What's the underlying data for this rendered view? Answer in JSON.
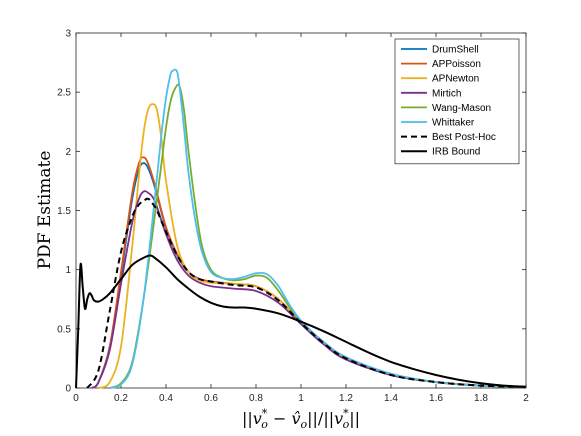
{
  "chart_data": {
    "type": "line",
    "xlabel": "||v_o* − v̂_o||/||v_o*||",
    "xlabel_parts": {
      "open": "||",
      "v": "v",
      "sup": "*",
      "sub": "o",
      "minus": " − ",
      "vhat": "v̂",
      "close": "||/||"
    },
    "ylabel": "PDF Estimate",
    "xlim": [
      0,
      2
    ],
    "ylim": [
      0,
      3
    ],
    "xticks": [
      "0",
      "0.2",
      "0.4",
      "0.6",
      "0.8",
      "1",
      "1.2",
      "1.4",
      "1.6",
      "1.8",
      "2"
    ],
    "yticks": [
      "0",
      "0.5",
      "1",
      "1.5",
      "2",
      "2.5",
      "3"
    ],
    "grid": false,
    "legend_position": "top-right",
    "series": [
      {
        "name": "DrumShell",
        "color": "#0072BD",
        "dash": "solid",
        "x": [
          0.07,
          0.1,
          0.15,
          0.2,
          0.25,
          0.28,
          0.3,
          0.32,
          0.35,
          0.4,
          0.45,
          0.5,
          0.55,
          0.6,
          0.7,
          0.8,
          0.9,
          1.0,
          1.1,
          1.2,
          1.4,
          1.6,
          1.8,
          2.0
        ],
        "y": [
          0.0,
          0.05,
          0.35,
          0.95,
          1.6,
          1.85,
          1.9,
          1.86,
          1.7,
          1.35,
          1.12,
          0.98,
          0.92,
          0.9,
          0.88,
          0.86,
          0.75,
          0.55,
          0.38,
          0.25,
          0.11,
          0.05,
          0.02,
          0.01
        ]
      },
      {
        "name": "APPoisson",
        "color": "#D95319",
        "dash": "solid",
        "x": [
          0.07,
          0.1,
          0.15,
          0.2,
          0.25,
          0.28,
          0.3,
          0.32,
          0.35,
          0.4,
          0.45,
          0.5,
          0.55,
          0.6,
          0.7,
          0.8,
          0.9,
          1.0,
          1.1,
          1.2,
          1.4,
          1.6,
          1.8,
          2.0
        ],
        "y": [
          0.0,
          0.05,
          0.35,
          0.98,
          1.65,
          1.9,
          1.95,
          1.9,
          1.72,
          1.36,
          1.13,
          0.98,
          0.92,
          0.9,
          0.88,
          0.86,
          0.75,
          0.55,
          0.38,
          0.25,
          0.11,
          0.05,
          0.02,
          0.01
        ]
      },
      {
        "name": "APNewton",
        "color": "#EDB120",
        "dash": "solid",
        "x": [
          0.1,
          0.15,
          0.2,
          0.25,
          0.28,
          0.3,
          0.32,
          0.34,
          0.36,
          0.38,
          0.4,
          0.45,
          0.5,
          0.55,
          0.6,
          0.7,
          0.8,
          0.9,
          1.0,
          1.1,
          1.2,
          1.4,
          1.6,
          1.8,
          2.0
        ],
        "y": [
          0.0,
          0.05,
          0.35,
          1.2,
          1.8,
          2.15,
          2.35,
          2.4,
          2.35,
          2.1,
          1.75,
          1.2,
          0.98,
          0.91,
          0.89,
          0.88,
          0.86,
          0.75,
          0.55,
          0.38,
          0.25,
          0.11,
          0.05,
          0.02,
          0.01
        ]
      },
      {
        "name": "Mirtich",
        "color": "#7E2F8E",
        "dash": "solid",
        "x": [
          0.07,
          0.1,
          0.15,
          0.2,
          0.25,
          0.28,
          0.3,
          0.32,
          0.35,
          0.4,
          0.45,
          0.5,
          0.55,
          0.6,
          0.7,
          0.8,
          0.9,
          1.0,
          1.1,
          1.2,
          1.4,
          1.6,
          1.8,
          2.0
        ],
        "y": [
          0.0,
          0.05,
          0.32,
          0.88,
          1.4,
          1.6,
          1.66,
          1.65,
          1.58,
          1.3,
          1.08,
          0.95,
          0.89,
          0.86,
          0.84,
          0.82,
          0.72,
          0.54,
          0.37,
          0.24,
          0.11,
          0.05,
          0.02,
          0.01
        ]
      },
      {
        "name": "Wang-Mason",
        "color": "#77AC30",
        "dash": "solid",
        "x": [
          0.15,
          0.2,
          0.25,
          0.3,
          0.35,
          0.38,
          0.4,
          0.42,
          0.44,
          0.46,
          0.48,
          0.5,
          0.53,
          0.56,
          0.6,
          0.65,
          0.7,
          0.75,
          0.8,
          0.85,
          0.9,
          0.95,
          1.0,
          1.1,
          1.2,
          1.4,
          1.6,
          1.8,
          2.0
        ],
        "y": [
          0.0,
          0.04,
          0.22,
          0.75,
          1.45,
          1.9,
          2.2,
          2.42,
          2.53,
          2.55,
          2.35,
          2.0,
          1.55,
          1.2,
          1.0,
          0.93,
          0.91,
          0.92,
          0.95,
          0.93,
          0.82,
          0.68,
          0.56,
          0.39,
          0.26,
          0.12,
          0.05,
          0.02,
          0.01
        ]
      },
      {
        "name": "Whittaker",
        "color": "#4DBEEE",
        "dash": "solid",
        "x": [
          0.15,
          0.2,
          0.25,
          0.3,
          0.35,
          0.38,
          0.4,
          0.42,
          0.43,
          0.44,
          0.45,
          0.46,
          0.48,
          0.5,
          0.53,
          0.56,
          0.6,
          0.65,
          0.7,
          0.75,
          0.8,
          0.85,
          0.9,
          0.95,
          1.0,
          1.1,
          1.2,
          1.4,
          1.6,
          1.8,
          2.0
        ],
        "y": [
          0.0,
          0.03,
          0.2,
          0.75,
          1.6,
          2.15,
          2.45,
          2.65,
          2.68,
          2.69,
          2.67,
          2.55,
          2.2,
          1.82,
          1.42,
          1.15,
          0.98,
          0.93,
          0.92,
          0.94,
          0.97,
          0.96,
          0.86,
          0.7,
          0.57,
          0.39,
          0.26,
          0.12,
          0.05,
          0.02,
          0.01
        ]
      },
      {
        "name": "Best Post-Hoc",
        "color": "#000000",
        "dash": "dashed",
        "x": [
          0.05,
          0.1,
          0.15,
          0.2,
          0.25,
          0.28,
          0.3,
          0.32,
          0.34,
          0.36,
          0.4,
          0.45,
          0.5,
          0.55,
          0.6,
          0.7,
          0.8,
          0.9,
          1.0,
          1.1,
          1.2,
          1.4,
          1.6,
          1.8,
          2.0
        ],
        "y": [
          0.0,
          0.15,
          0.65,
          1.15,
          1.45,
          1.55,
          1.58,
          1.6,
          1.56,
          1.5,
          1.32,
          1.12,
          0.98,
          0.92,
          0.9,
          0.87,
          0.85,
          0.74,
          0.55,
          0.38,
          0.25,
          0.11,
          0.05,
          0.02,
          0.01
        ]
      },
      {
        "name": "IRB Bound",
        "color": "#000000",
        "dash": "solid",
        "x": [
          0.0,
          0.01,
          0.02,
          0.03,
          0.04,
          0.05,
          0.06,
          0.07,
          0.08,
          0.1,
          0.12,
          0.15,
          0.2,
          0.25,
          0.3,
          0.33,
          0.35,
          0.4,
          0.45,
          0.5,
          0.55,
          0.6,
          0.65,
          0.7,
          0.75,
          0.8,
          0.9,
          1.0,
          1.1,
          1.2,
          1.3,
          1.4,
          1.5,
          1.6,
          1.7,
          1.8,
          1.9,
          2.0
        ],
        "y": [
          0.0,
          0.5,
          1.04,
          0.85,
          0.67,
          0.75,
          0.8,
          0.78,
          0.74,
          0.73,
          0.75,
          0.8,
          0.92,
          1.04,
          1.1,
          1.12,
          1.1,
          1.02,
          0.92,
          0.84,
          0.77,
          0.72,
          0.69,
          0.68,
          0.68,
          0.67,
          0.63,
          0.56,
          0.48,
          0.39,
          0.3,
          0.22,
          0.16,
          0.11,
          0.07,
          0.04,
          0.02,
          0.01
        ]
      }
    ]
  }
}
